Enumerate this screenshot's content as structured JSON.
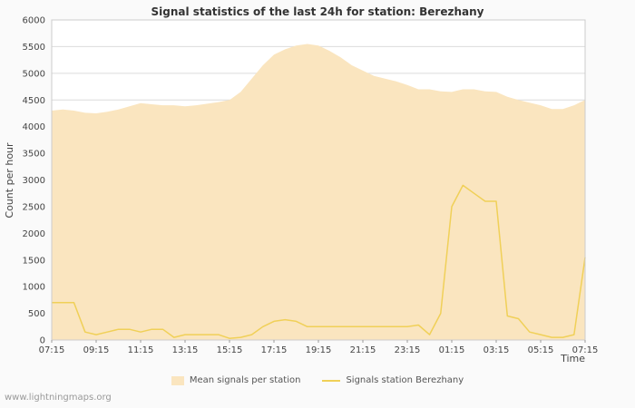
{
  "page": {
    "footer": "www.lightningmaps.org"
  },
  "chart_data": {
    "type": "area+line",
    "title": "Signal statistics of the last 24h for station: Berezhany",
    "xlabel": "Time",
    "ylabel": "Count per hour",
    "ylim": [
      0,
      6000
    ],
    "y_ticks": [
      0,
      500,
      1000,
      1500,
      2000,
      2500,
      3000,
      3500,
      4000,
      4500,
      5000,
      5500,
      6000
    ],
    "x_tick_labels": [
      "07:15",
      "09:15",
      "11:15",
      "13:15",
      "15:15",
      "17:15",
      "19:15",
      "21:15",
      "23:15",
      "01:15",
      "03:15",
      "05:15",
      "07:15"
    ],
    "x_start": "07:15",
    "x_interval_minutes": 30,
    "grid": "horizontal",
    "legend_position": "bottom",
    "colors": {
      "grid": "#dcdcdc",
      "border": "#cccccc",
      "plot_background": "#ffffff",
      "tick_text": "#444444"
    },
    "series": [
      {
        "name": "Mean signals per station",
        "type": "area",
        "color": "#fae5bf",
        "values": [
          4300,
          4320,
          4300,
          4260,
          4250,
          4280,
          4320,
          4380,
          4440,
          4420,
          4400,
          4400,
          4380,
          4400,
          4430,
          4460,
          4500,
          4650,
          4900,
          5150,
          5350,
          5450,
          5520,
          5550,
          5520,
          5420,
          5300,
          5150,
          5050,
          4950,
          4900,
          4850,
          4780,
          4700,
          4700,
          4660,
          4650,
          4700,
          4700,
          4660,
          4650,
          4560,
          4500,
          4450,
          4400,
          4330,
          4330,
          4400,
          4500
        ]
      },
      {
        "name": "Signals station Berezhany",
        "type": "line",
        "color": "#f0d058",
        "values": [
          700,
          700,
          700,
          150,
          100,
          150,
          200,
          200,
          150,
          200,
          200,
          50,
          100,
          100,
          100,
          100,
          30,
          50,
          100,
          250,
          350,
          380,
          350,
          250,
          250,
          250,
          250,
          250,
          250,
          250,
          250,
          250,
          250,
          280,
          100,
          500,
          2500,
          2900,
          2750,
          2600,
          2600,
          450,
          400,
          150,
          100,
          50,
          50,
          100,
          1550
        ]
      }
    ]
  }
}
